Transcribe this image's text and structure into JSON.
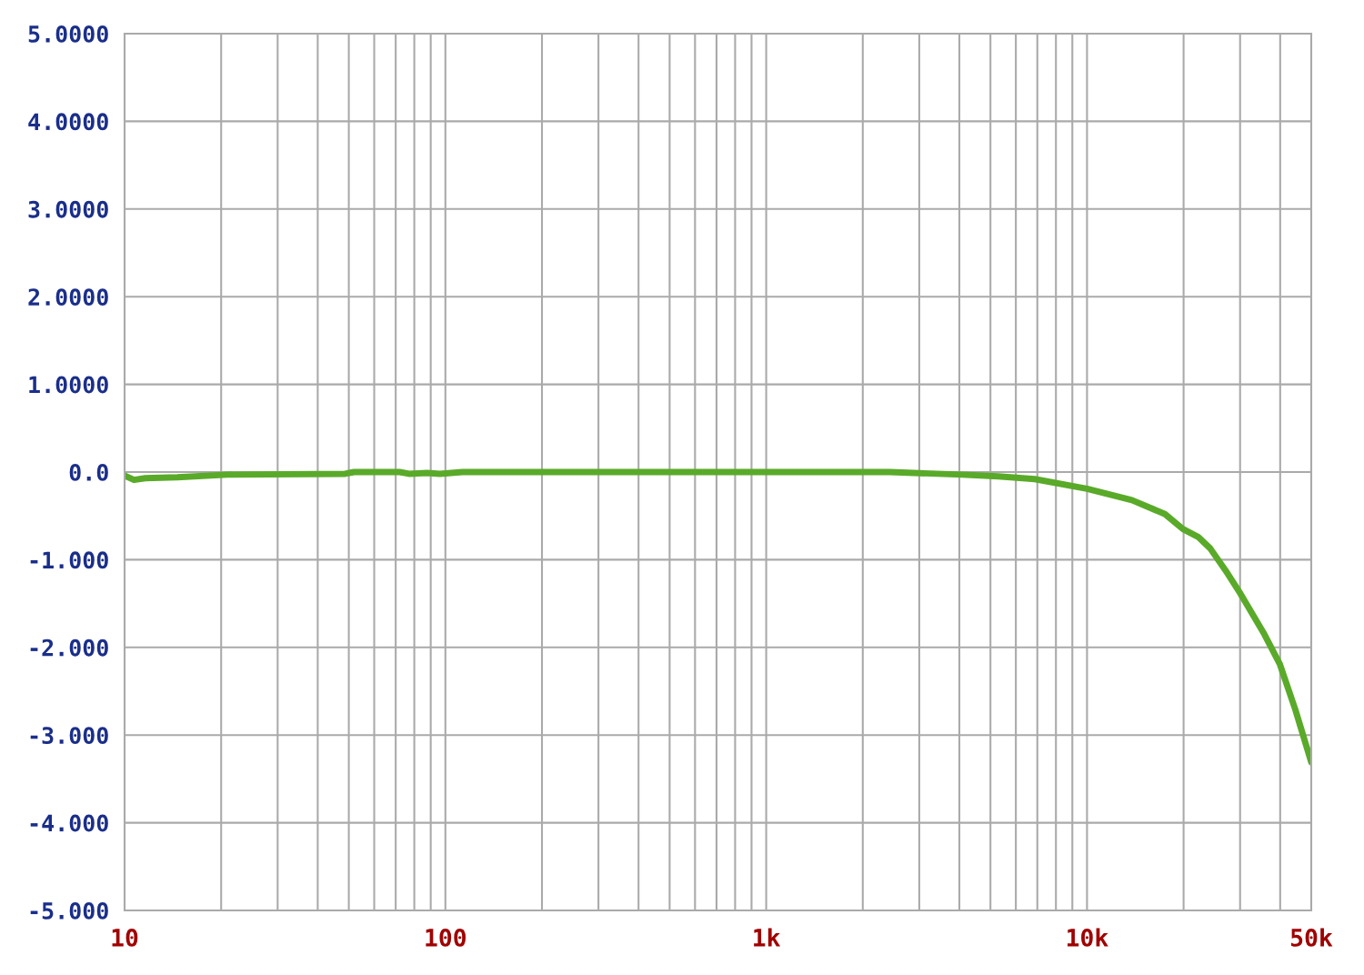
{
  "chart_data": {
    "type": "line",
    "log": "x",
    "grid": true,
    "marker": "none",
    "line_style": "solid",
    "xlim": [
      10,
      50000
    ],
    "ylim": [
      -5,
      5
    ],
    "xticks": [
      10,
      {
        "value": 20,
        "label": null
      },
      {
        "value": 30,
        "label": null
      },
      {
        "value": 40,
        "label": null
      },
      {
        "value": 50,
        "label": null
      },
      {
        "value": 60,
        "label": null
      },
      {
        "value": 70,
        "label": null
      },
      {
        "value": 80,
        "label": null
      },
      {
        "value": 90,
        "label": null
      },
      100,
      {
        "value": 200,
        "label": null
      },
      {
        "value": 300,
        "label": null
      },
      {
        "value": 400,
        "label": null
      },
      {
        "value": 500,
        "label": null
      },
      {
        "value": 600,
        "label": null
      },
      {
        "value": 700,
        "label": null
      },
      {
        "value": 800,
        "label": null
      },
      {
        "value": 900,
        "label": null
      },
      {
        "value": 1000,
        "label": "1k"
      },
      {
        "value": 2000,
        "label": null
      },
      {
        "value": 3000,
        "label": null
      },
      {
        "value": 4000,
        "label": null
      },
      {
        "value": 5000,
        "label": null
      },
      {
        "value": 6000,
        "label": null
      },
      {
        "value": 7000,
        "label": null
      },
      {
        "value": 8000,
        "label": null
      },
      {
        "value": 9000,
        "label": null
      },
      {
        "value": 10000,
        "label": "10k"
      },
      {
        "value": 20000,
        "label": null
      },
      {
        "value": 30000,
        "label": null
      },
      {
        "value": 40000,
        "label": null
      },
      {
        "value": 50000,
        "label": "50k"
      }
    ],
    "yticks": [
      {
        "value": 5,
        "label": "5.0000"
      },
      {
        "value": 4,
        "label": "4.0000"
      },
      {
        "value": 3,
        "label": "3.0000"
      },
      {
        "value": 2,
        "label": "2.0000"
      },
      {
        "value": 1,
        "label": "1.0000"
      },
      {
        "value": 0,
        "label": "0.0"
      },
      {
        "value": -1,
        "label": "-1.000"
      },
      {
        "value": -2,
        "label": "-2.000"
      },
      {
        "value": -3,
        "label": "-3.000"
      },
      {
        "value": -4,
        "label": "-4.000"
      },
      {
        "value": -5,
        "label": "-5.000"
      }
    ],
    "series": [
      {
        "color": "#5aaa2a",
        "x": [
          10,
          10.7,
          11.6,
          14.6,
          20.9,
          48.7,
          51.9,
          72,
          77,
          87.5,
          96.2,
          113,
          2430,
          4080,
          5290,
          6870,
          10000,
          13800,
          17500,
          19900,
          22200,
          24200,
          27000,
          30100,
          35700,
          39900,
          44600,
          50000
        ],
        "values": [
          -0.04,
          -0.09,
          -0.07,
          -0.06,
          -0.03,
          -0.02,
          0,
          0,
          -0.02,
          -0.01,
          -0.02,
          0,
          0,
          -0.03,
          -0.05,
          -0.08,
          -0.19,
          -0.32,
          -0.48,
          -0.65,
          -0.74,
          -0.87,
          -1.12,
          -1.39,
          -1.85,
          -2.19,
          -2.71,
          -3.31
        ]
      }
    ]
  }
}
